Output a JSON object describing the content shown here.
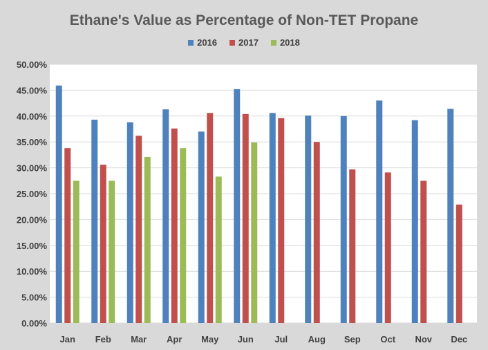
{
  "chart_data": {
    "type": "bar",
    "title": "Ethane's Value as  Percentage of Non-TET Propane",
    "xlabel": "",
    "ylabel": "",
    "ylim": [
      0,
      50
    ],
    "y_ticks": [
      "0.00%",
      "5.00%",
      "10.00%",
      "15.00%",
      "20.00%",
      "25.00%",
      "30.00%",
      "35.00%",
      "40.00%",
      "45.00%",
      "50.00%"
    ],
    "grid": true,
    "legend_position": "top",
    "categories": [
      "Jan",
      "Feb",
      "Mar",
      "Apr",
      "May",
      "Jun",
      "Jul",
      "Aug",
      "Sep",
      "Oct",
      "Nov",
      "Dec"
    ],
    "series": [
      {
        "name": "2016",
        "color": "#4f81bd",
        "values": [
          45.9,
          39.3,
          38.8,
          41.3,
          37.0,
          45.2,
          40.6,
          40.1,
          40.0,
          43.0,
          39.2,
          41.4
        ]
      },
      {
        "name": "2017",
        "color": "#c0504d",
        "values": [
          33.8,
          30.6,
          36.2,
          37.6,
          40.6,
          40.4,
          39.6,
          35.0,
          29.7,
          29.1,
          27.5,
          22.9
        ]
      },
      {
        "name": "2018",
        "color": "#9bbb59",
        "values": [
          27.5,
          27.5,
          32.1,
          33.8,
          28.3,
          34.9,
          null,
          null,
          null,
          null,
          null,
          null
        ]
      }
    ]
  }
}
